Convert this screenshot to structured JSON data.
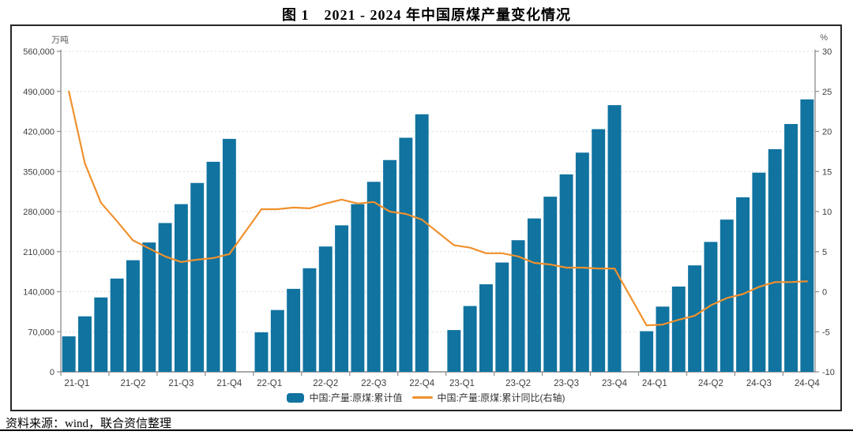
{
  "page": {
    "title": "图 1　2021 - 2024 年中国原煤产量变化情况",
    "source_note": "资料来源：wind，联合资信整理"
  },
  "legend": {
    "bar_label": "中国:产量:原煤:累计值",
    "line_label": "中国:产量:原煤:累计同比(右轴)"
  },
  "colors": {
    "bar": "#1073A0",
    "line": "#F0912D",
    "grid": "#DCDCDC",
    "axis": "#8C8C8C",
    "tick_text": "#404040"
  },
  "chart_data": {
    "type": "bar+line",
    "title": "图 1 2021 - 2024 年中国原煤产量变化情况",
    "grid": "horizontal dotted",
    "legend_position": "bottom-center",
    "x_months": [
      "21-02",
      "21-03",
      "21-04",
      "21-05",
      "21-06",
      "21-07",
      "21-08",
      "21-09",
      "21-10",
      "21-11",
      "21-12",
      "22-02",
      "22-03",
      "22-04",
      "22-05",
      "22-06",
      "22-07",
      "22-08",
      "22-09",
      "22-10",
      "22-11",
      "22-12",
      "23-02",
      "23-03",
      "23-04",
      "23-05",
      "23-06",
      "23-07",
      "23-08",
      "23-09",
      "23-10",
      "23-11",
      "23-12",
      "24-02",
      "24-03",
      "24-04",
      "24-05",
      "24-06",
      "24-07",
      "24-08",
      "24-09",
      "24-10",
      "24-11",
      "24-12"
    ],
    "x_note": "monthly cumulative values Feb–Dec each year; January slot empty (no bar)",
    "x_tick_labels": [
      "21-Q1",
      "21-Q2",
      "21-Q3",
      "21-Q4",
      "22-Q1",
      "22-Q2",
      "22-Q3",
      "22-Q4",
      "23-Q1",
      "23-Q2",
      "23-Q3",
      "23-Q4",
      "24-Q1",
      "24-Q2",
      "24-Q3",
      "24-Q4"
    ],
    "left_axis": {
      "unit": "万吨",
      "min": 0,
      "max": 560000,
      "step": 70000,
      "ticks": [
        "0",
        "70,000",
        "140,000",
        "210,000",
        "280,000",
        "350,000",
        "420,000",
        "490,000",
        "560,000"
      ]
    },
    "right_axis": {
      "unit": "%",
      "min": -10,
      "max": 30,
      "step": 5,
      "ticks": [
        "-10",
        "-5",
        "0",
        "5",
        "10",
        "15",
        "20",
        "25",
        "30"
      ]
    },
    "series": [
      {
        "name": "中国:产量:原煤:累计值",
        "type": "bar",
        "axis": "left",
        "unit": "万吨",
        "values": [
          62000,
          97000,
          130000,
          163000,
          195000,
          226000,
          260000,
          293000,
          330000,
          367000,
          407000,
          69000,
          108000,
          145000,
          181000,
          219000,
          256000,
          293000,
          332000,
          370000,
          409000,
          450000,
          73000,
          115000,
          153000,
          191000,
          230000,
          268000,
          306000,
          345000,
          383000,
          424000,
          466000,
          71000,
          114000,
          149000,
          186000,
          227000,
          266000,
          305000,
          348000,
          389000,
          433000,
          476000
        ]
      },
      {
        "name": "中国:产量:原煤:累计同比(右轴)",
        "type": "line",
        "axis": "right",
        "unit": "%",
        "values": [
          25.0,
          16.0,
          11.1,
          8.8,
          6.4,
          5.4,
          4.4,
          3.7,
          4.0,
          4.2,
          4.7,
          10.3,
          10.3,
          10.5,
          10.4,
          11.0,
          11.5,
          11.0,
          11.2,
          10.0,
          9.7,
          9.0,
          5.8,
          5.5,
          4.8,
          4.8,
          4.4,
          3.6,
          3.4,
          3.0,
          3.0,
          2.9,
          2.9,
          -4.2,
          -4.1,
          -3.5,
          -3.0,
          -1.7,
          -0.8,
          -0.3,
          0.6,
          1.2,
          1.2,
          1.3
        ]
      }
    ]
  }
}
